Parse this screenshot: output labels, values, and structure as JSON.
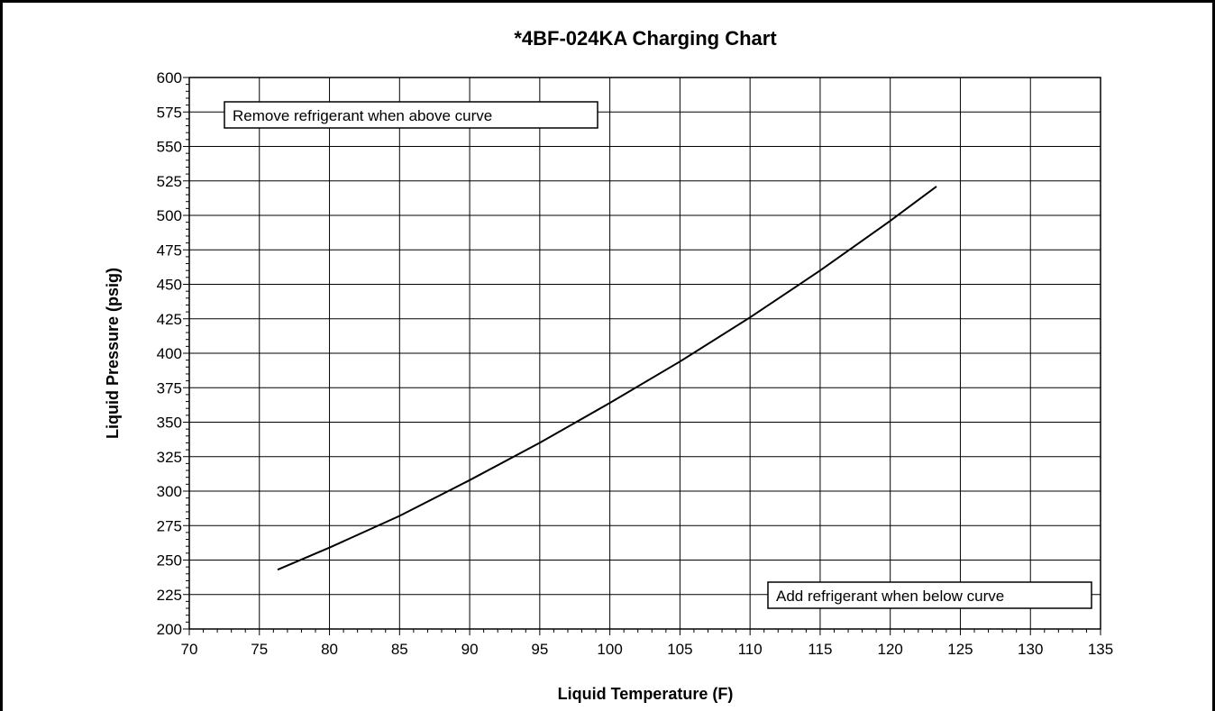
{
  "chart_data": {
    "type": "line",
    "title": "*4BF-024KA Charging Chart",
    "xlabel": "Liquid Temperature (F)",
    "ylabel": "Liquid Pressure (psig)",
    "xlim": [
      70,
      135
    ],
    "ylim": [
      200,
      600
    ],
    "xticks": [
      70,
      75,
      80,
      85,
      90,
      95,
      100,
      105,
      110,
      115,
      120,
      125,
      130,
      135
    ],
    "yticks": [
      200,
      225,
      250,
      275,
      300,
      325,
      350,
      375,
      400,
      425,
      450,
      475,
      500,
      525,
      550,
      575,
      600
    ],
    "grid": true,
    "series": [
      {
        "x": [
          76.3,
          80,
          85,
          90,
          95,
          100,
          105,
          110,
          115,
          120,
          123.3
        ],
        "y": [
          243,
          259,
          282,
          308,
          335,
          364,
          394,
          426,
          460,
          496,
          521
        ]
      }
    ],
    "annotations": [
      {
        "text": "Remove refrigerant when above curve",
        "position": "top-left"
      },
      {
        "text": "Add refrigerant when below curve",
        "position": "bottom-right"
      }
    ],
    "colors": {
      "line": "#000000",
      "grid": "#000000",
      "background": "#ffffff"
    }
  }
}
